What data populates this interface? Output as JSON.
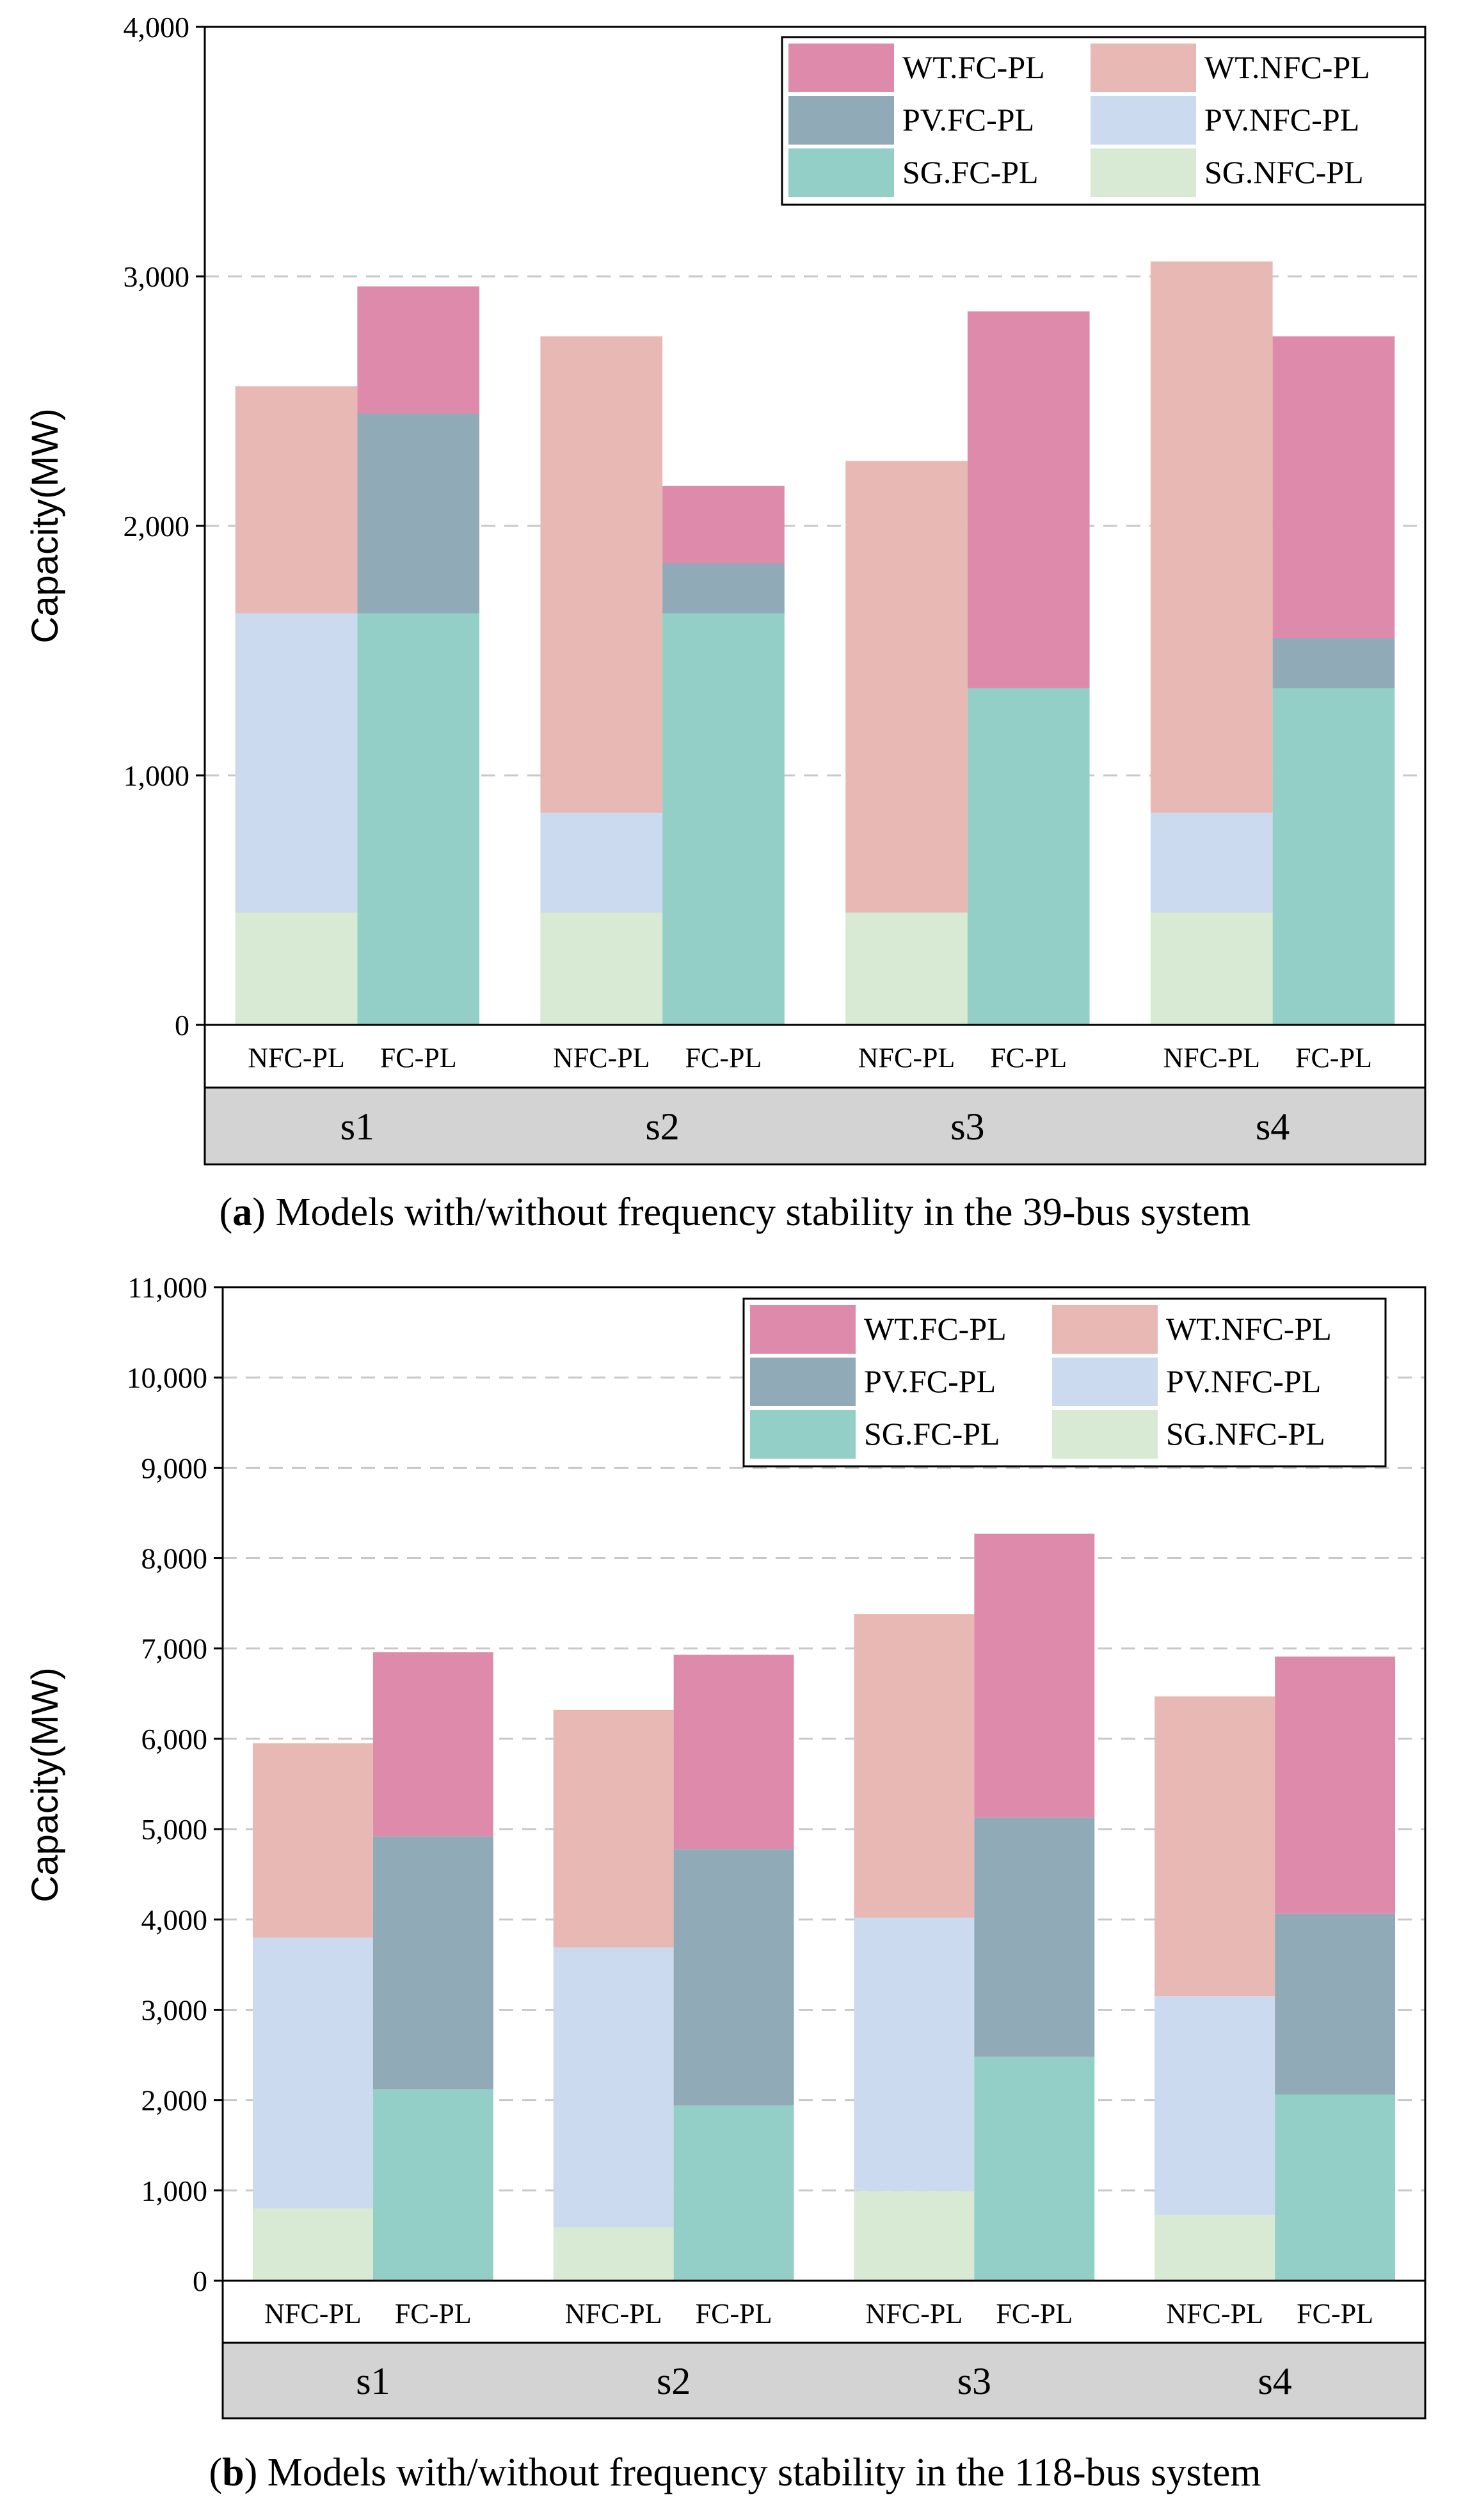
{
  "chart_data": [
    {
      "type": "bar",
      "stacked": true,
      "caption_letter": "a",
      "caption_text": "Models with/without frequency stability in the 39-bus system",
      "ylabel": "Capacity(MW)",
      "ylim": [
        0,
        4000
      ],
      "yticks": [
        0,
        1000,
        2000,
        3000,
        4000
      ],
      "ytick_labels": [
        "0",
        "1,000",
        "2,000",
        "3,000",
        "4,000"
      ],
      "groups": [
        "s1",
        "s2",
        "s3",
        "s4"
      ],
      "categories": [
        "NFC-PL",
        "FC-PL"
      ],
      "legend": [
        "WT.FC-PL",
        "WT.NFC-PL",
        "PV.FC-PL",
        "PV.NFC-PL",
        "SG.FC-PL",
        "SG.NFC-PL"
      ],
      "bars": [
        {
          "group": "s1",
          "model": "NFC-PL",
          "SG": 450,
          "PV": 1200,
          "WT": 910
        },
        {
          "group": "s1",
          "model": "FC-PL",
          "SG": 1650,
          "PV": 800,
          "WT": 510
        },
        {
          "group": "s2",
          "model": "NFC-PL",
          "SG": 450,
          "PV": 400,
          "WT": 1910
        },
        {
          "group": "s2",
          "model": "FC-PL",
          "SG": 1650,
          "PV": 200,
          "WT": 310
        },
        {
          "group": "s3",
          "model": "NFC-PL",
          "SG": 450,
          "PV": 0,
          "WT": 1810
        },
        {
          "group": "s3",
          "model": "FC-PL",
          "SG": 1350,
          "PV": 0,
          "WT": 1510
        },
        {
          "group": "s4",
          "model": "NFC-PL",
          "SG": 450,
          "PV": 400,
          "WT": 2210
        },
        {
          "group": "s4",
          "model": "FC-PL",
          "SG": 1350,
          "PV": 200,
          "WT": 1210
        }
      ]
    },
    {
      "type": "bar",
      "stacked": true,
      "caption_letter": "b",
      "caption_text": "Models with/without frequency stability in the 118-bus system",
      "ylabel": "Capacity(MW)",
      "ylim": [
        0,
        11000
      ],
      "yticks": [
        0,
        1000,
        2000,
        3000,
        4000,
        5000,
        6000,
        7000,
        8000,
        9000,
        10000,
        11000
      ],
      "ytick_labels": [
        "0",
        "1,000",
        "2,000",
        "3,000",
        "4,000",
        "5,000",
        "6,000",
        "7,000",
        "8,000",
        "9,000",
        "10,000",
        "11,000"
      ],
      "groups": [
        "s1",
        "s2",
        "s3",
        "s4"
      ],
      "categories": [
        "NFC-PL",
        "FC-PL"
      ],
      "legend": [
        "WT.FC-PL",
        "WT.NFC-PL",
        "PV.FC-PL",
        "PV.NFC-PL",
        "SG.FC-PL",
        "SG.NFC-PL"
      ],
      "bars": [
        {
          "group": "s1",
          "model": "NFC-PL",
          "SG": 800,
          "PV": 3000,
          "WT": 2150
        },
        {
          "group": "s1",
          "model": "FC-PL",
          "SG": 2120,
          "PV": 2800,
          "WT": 2040
        },
        {
          "group": "s2",
          "model": "NFC-PL",
          "SG": 590,
          "PV": 3100,
          "WT": 2630
        },
        {
          "group": "s2",
          "model": "FC-PL",
          "SG": 1940,
          "PV": 2840,
          "WT": 2150
        },
        {
          "group": "s3",
          "model": "NFC-PL",
          "SG": 990,
          "PV": 3030,
          "WT": 3360
        },
        {
          "group": "s3",
          "model": "FC-PL",
          "SG": 2480,
          "PV": 2650,
          "WT": 3140
        },
        {
          "group": "s4",
          "model": "NFC-PL",
          "SG": 730,
          "PV": 2420,
          "WT": 3320
        },
        {
          "group": "s4",
          "model": "FC-PL",
          "SG": 2060,
          "PV": 2000,
          "WT": 2850
        }
      ]
    }
  ],
  "colors": {
    "WT.FC-PL": "#DE8BAB",
    "WT.NFC-PL": "#E8B9B4",
    "PV.FC-PL": "#91AAB8",
    "PV.NFC-PL": "#CBDAEE",
    "SG.FC-PL": "#93CFC6",
    "SG.NFC-PL": "#D8EAD4",
    "group_band": "#D3D3D3",
    "grid": "#C8C8C8"
  }
}
